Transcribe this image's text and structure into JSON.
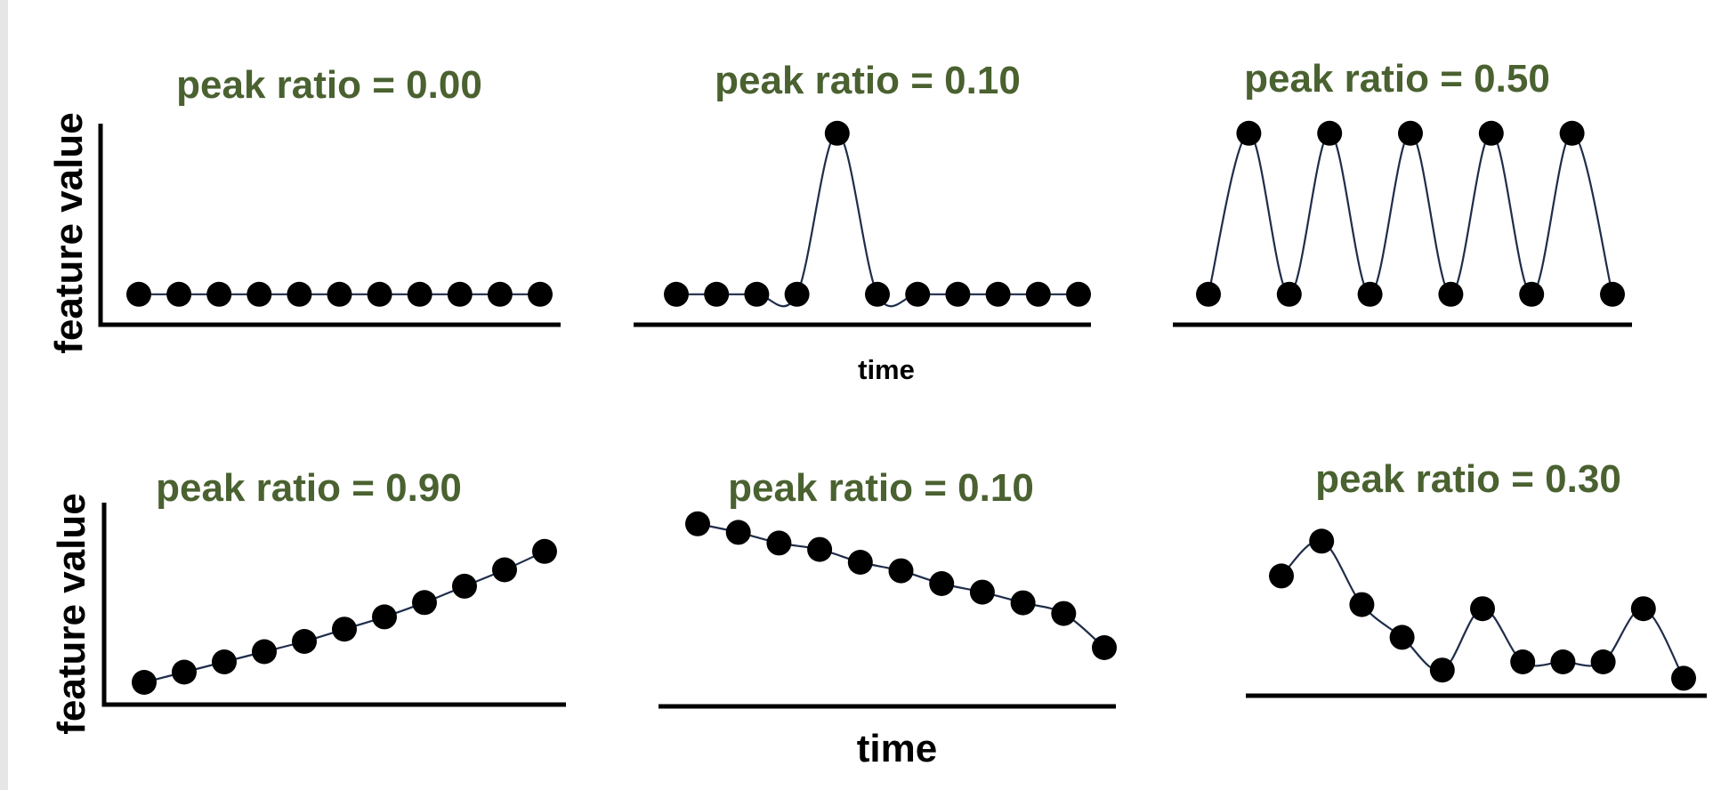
{
  "panels": [
    {
      "id": "p1",
      "title": "peak ratio = 0.00",
      "values": [
        0.15,
        0.15,
        0.15,
        0.15,
        0.15,
        0.15,
        0.15,
        0.15,
        0.15,
        0.15,
        0.15
      ]
    },
    {
      "id": "p2",
      "title": "peak ratio = 0.10",
      "values": [
        0.15,
        0.15,
        0.15,
        0.15,
        0.88,
        0.15,
        0.15,
        0.15,
        0.15,
        0.15,
        0.15
      ]
    },
    {
      "id": "p3",
      "title": "peak ratio = 0.50",
      "values": [
        0.15,
        0.88,
        0.15,
        0.88,
        0.15,
        0.88,
        0.15,
        0.88,
        0.15,
        0.88,
        0.15
      ]
    },
    {
      "id": "p4",
      "title": "peak ratio = 0.90",
      "values": [
        0.1,
        0.15,
        0.2,
        0.25,
        0.3,
        0.36,
        0.42,
        0.49,
        0.57,
        0.65,
        0.74
      ]
    },
    {
      "id": "p5",
      "title": "peak ratio = 0.10",
      "values": [
        0.88,
        0.84,
        0.79,
        0.76,
        0.7,
        0.66,
        0.6,
        0.56,
        0.51,
        0.46,
        0.3
      ]
    },
    {
      "id": "p6",
      "title": "peak ratio = 0.30",
      "values": [
        0.62,
        0.79,
        0.48,
        0.32,
        0.16,
        0.46,
        0.2,
        0.2,
        0.2,
        0.46,
        0.12
      ]
    }
  ],
  "axis_labels": {
    "y_top": "feature value",
    "y_bottom": "feature value",
    "time_top": "time",
    "time_bottom": "time"
  },
  "colors": {
    "title": "#4a6130",
    "line": "#1f2d4a",
    "point": "#000000"
  }
}
